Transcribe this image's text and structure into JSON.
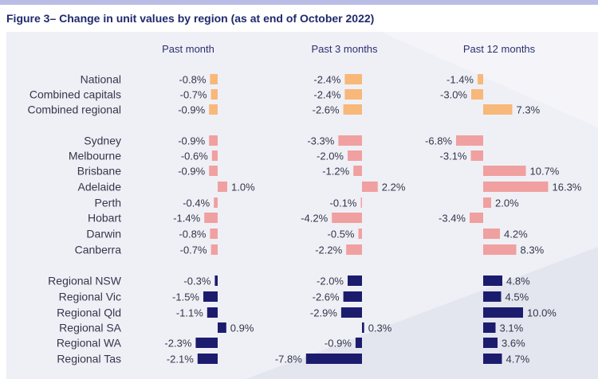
{
  "figure_title": "Figure 3– Change in unit values by region (as at end of October 2022)",
  "colors": {
    "combined": "#f7b87a",
    "capitals": "#f0a0a0",
    "regional": "#1c1c6e",
    "title": "#1f2a6b",
    "panel": "#eff0f6"
  },
  "chart_data": {
    "type": "bar",
    "orientation": "horizontal",
    "title": "Figure 3– Change in unit values by region (as at end of October 2022)",
    "value_unit": "%",
    "categories": [
      "National",
      "Combined capitals",
      "Combined regional",
      "Sydney",
      "Melbourne",
      "Brisbane",
      "Adelaide",
      "Perth",
      "Hobart",
      "Darwin",
      "Canberra",
      "Regional NSW",
      "Regional Vic",
      "Regional Qld",
      "Regional SA",
      "Regional WA",
      "Regional Tas"
    ],
    "category_groups": [
      {
        "name": "combined",
        "start": 0,
        "count": 3
      },
      {
        "name": "capitals",
        "start": 3,
        "count": 8
      },
      {
        "name": "regional",
        "start": 11,
        "count": 6
      }
    ],
    "series": [
      {
        "name": "Past month",
        "values": [
          -0.8,
          -0.7,
          -0.9,
          -0.9,
          -0.6,
          -0.9,
          1.0,
          -0.4,
          -1.4,
          -0.8,
          -0.7,
          -0.3,
          -1.5,
          -1.1,
          0.9,
          -2.3,
          -2.1
        ],
        "labels": [
          "-0.8%",
          "-0.7%",
          "-0.9%",
          "-0.9%",
          "-0.6%",
          "-0.9%",
          "1.0%",
          "-0.4%",
          "-1.4%",
          "-0.8%",
          "-0.7%",
          "-0.3%",
          "-1.5%",
          "-1.1%",
          "0.9%",
          "-2.3%",
          "-2.1%"
        ]
      },
      {
        "name": "Past 3 months",
        "values": [
          -2.4,
          -2.4,
          -2.6,
          -3.3,
          -2.0,
          -1.2,
          2.2,
          -0.1,
          -4.2,
          -0.5,
          -2.2,
          -2.0,
          -2.6,
          -2.9,
          0.3,
          -0.9,
          -7.8
        ],
        "labels": [
          "-2.4%",
          "-2.4%",
          "-2.6%",
          "-3.3%",
          "-2.0%",
          "-1.2%",
          "2.2%",
          "-0.1%",
          "-4.2%",
          "-0.5%",
          "-2.2%",
          "-2.0%",
          "-2.6%",
          "-2.9%",
          "0.3%",
          "-0.9%",
          "-7.8%"
        ]
      },
      {
        "name": "Past 12 months",
        "values": [
          -1.4,
          -3.0,
          7.3,
          -6.8,
          -3.1,
          10.7,
          16.3,
          2.0,
          -3.4,
          4.2,
          8.3,
          4.8,
          4.5,
          10.0,
          3.1,
          3.6,
          4.7
        ],
        "labels": [
          "-1.4%",
          "-3.0%",
          "7.3%",
          "-6.8%",
          "-3.1%",
          "10.7%",
          "16.3%",
          "2.0%",
          "-3.4%",
          "4.2%",
          "8.3%",
          "4.8%",
          "4.5%",
          "10.0%",
          "3.1%",
          "3.6%",
          "4.7%"
        ]
      }
    ],
    "grid": false,
    "legend": "none"
  }
}
